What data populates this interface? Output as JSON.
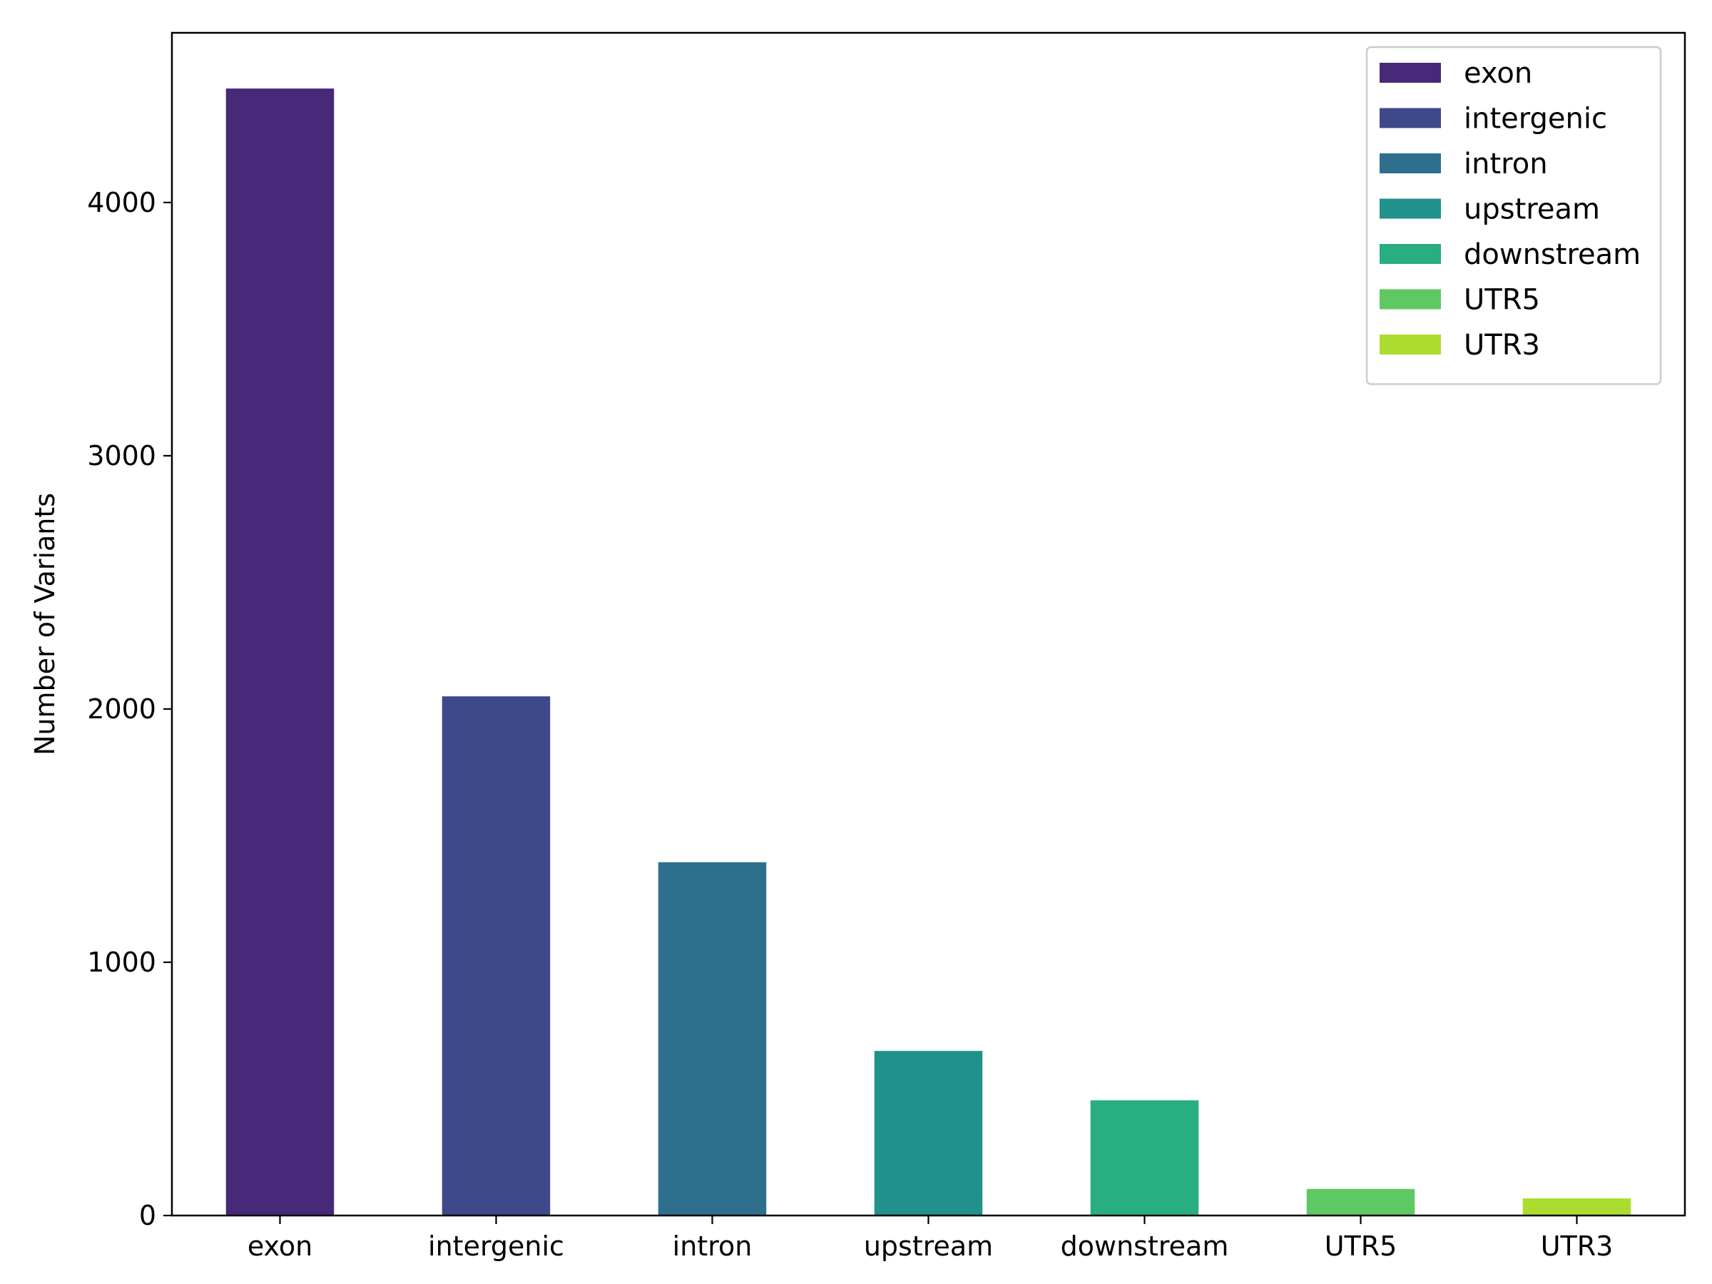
{
  "chart_data": {
    "type": "bar",
    "title": "",
    "xlabel": "",
    "ylabel": "Number of Variants",
    "categories": [
      "exon",
      "intergenic",
      "intron",
      "upstream",
      "downstream",
      "UTR5",
      "UTR3"
    ],
    "values": [
      4450,
      2050,
      1395,
      650,
      455,
      105,
      68
    ],
    "colors": [
      "#482878",
      "#3e4989",
      "#2f6f8e",
      "#21918c",
      "#28ae80",
      "#5ec962",
      "#addc30"
    ],
    "ylim": [
      0,
      4670
    ],
    "yticks": [
      0,
      1000,
      2000,
      3000,
      4000
    ],
    "ytick_labels": [
      "0",
      "1000",
      "2000",
      "3000",
      "4000"
    ],
    "grid": false,
    "legend": {
      "position": "top-right",
      "entries": [
        "exon",
        "intergenic",
        "intron",
        "upstream",
        "downstream",
        "UTR5",
        "UTR3"
      ]
    }
  }
}
